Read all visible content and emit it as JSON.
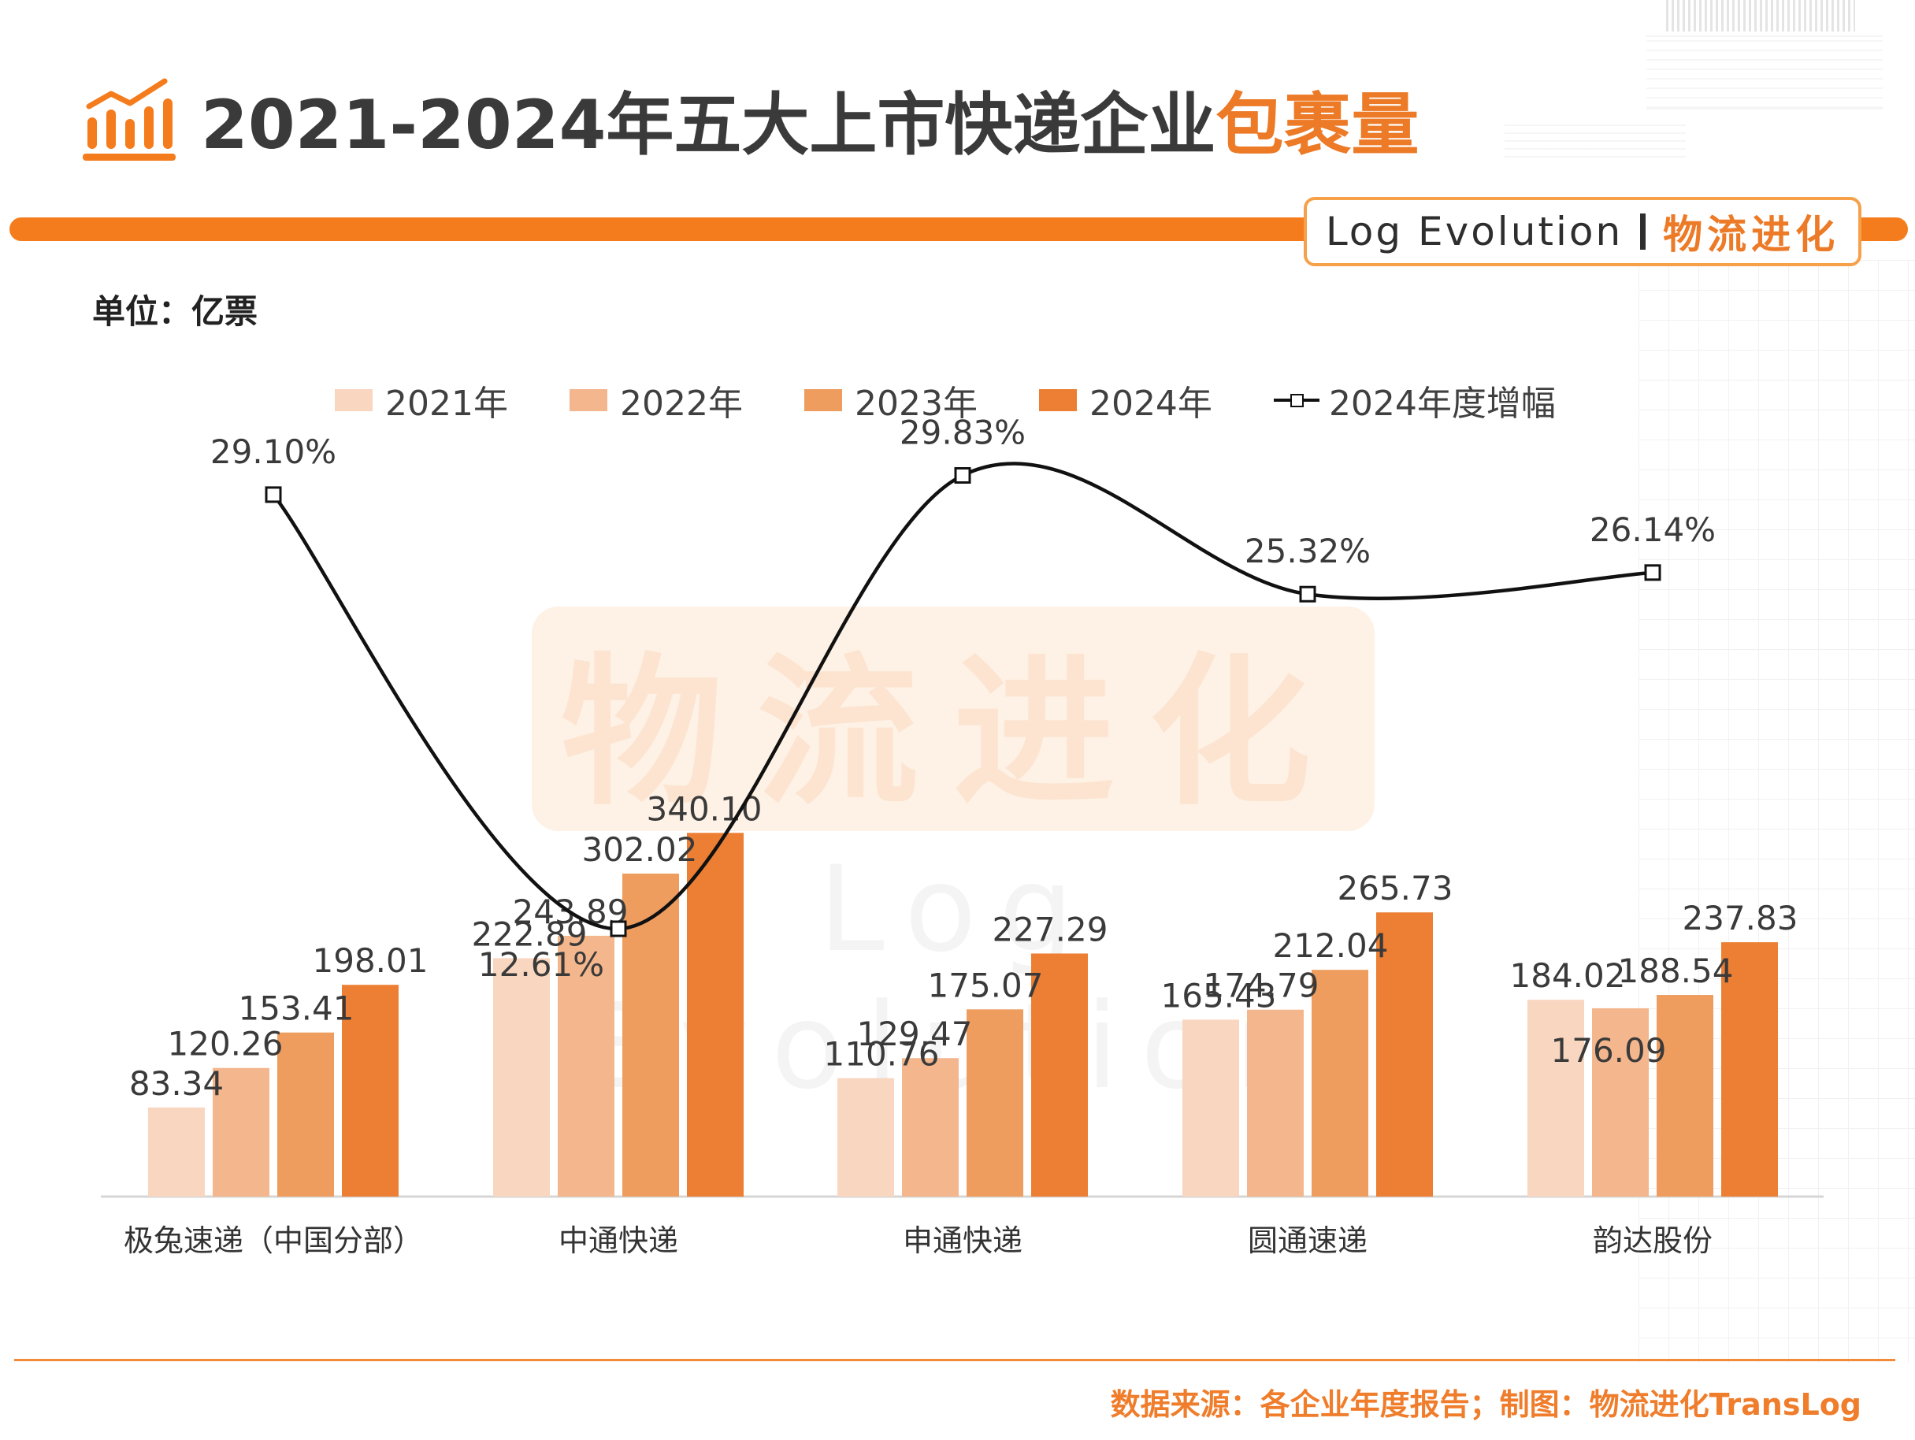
{
  "title": {
    "main": "2021-2024年五大上市快递企业",
    "highlight": "包裹量"
  },
  "brand": {
    "en": "Log Evolution",
    "cn": "物流进化"
  },
  "unit": "单位：亿票",
  "source": "数据来源：各企业年度报告；制图：物流进化TransLog",
  "watermark": {
    "cn": "物流进化",
    "en": "Log Evolution"
  },
  "colors": {
    "accent": "#f47c1d",
    "highlight": "#ec7a27",
    "s2021": "#f9d6c0",
    "s2022": "#f4b68d",
    "s2023": "#ee9d5f",
    "s2024": "#ec7f33",
    "line": "#111111"
  },
  "chart_data": {
    "type": "bar",
    "categories": [
      "极兔速递（中国分部）",
      "中通快递",
      "申通快递",
      "圆通速递",
      "韵达股份"
    ],
    "series": [
      {
        "name": "2021年",
        "values": [
          83.34,
          222.89,
          110.76,
          165.43,
          184.02
        ]
      },
      {
        "name": "2022年",
        "values": [
          120.26,
          243.89,
          129.47,
          174.79,
          176.09
        ]
      },
      {
        "name": "2023年",
        "values": [
          153.41,
          302.02,
          175.07,
          212.04,
          188.54
        ]
      },
      {
        "name": "2024年",
        "values": [
          198.01,
          340.1,
          227.29,
          265.73,
          237.83
        ]
      }
    ],
    "value_labels": [
      [
        "83.34",
        "222.89",
        "110.76",
        "165.43",
        "184.02"
      ],
      [
        "120.26",
        "243.89",
        "129.47",
        "174.79",
        "176.09"
      ],
      [
        "153.41",
        "302.02",
        "175.07",
        "212.04",
        "188.54"
      ],
      [
        "198.01",
        "340.10",
        "227.29",
        "265.73",
        "237.83"
      ]
    ],
    "line_series": {
      "name": "2024年度增幅",
      "values": [
        29.1,
        12.61,
        29.83,
        25.32,
        26.14
      ],
      "labels": [
        "29.10%",
        "12.61%",
        "29.83%",
        "25.32%",
        "26.14%"
      ]
    },
    "legend_position": "top",
    "grid": false
  }
}
